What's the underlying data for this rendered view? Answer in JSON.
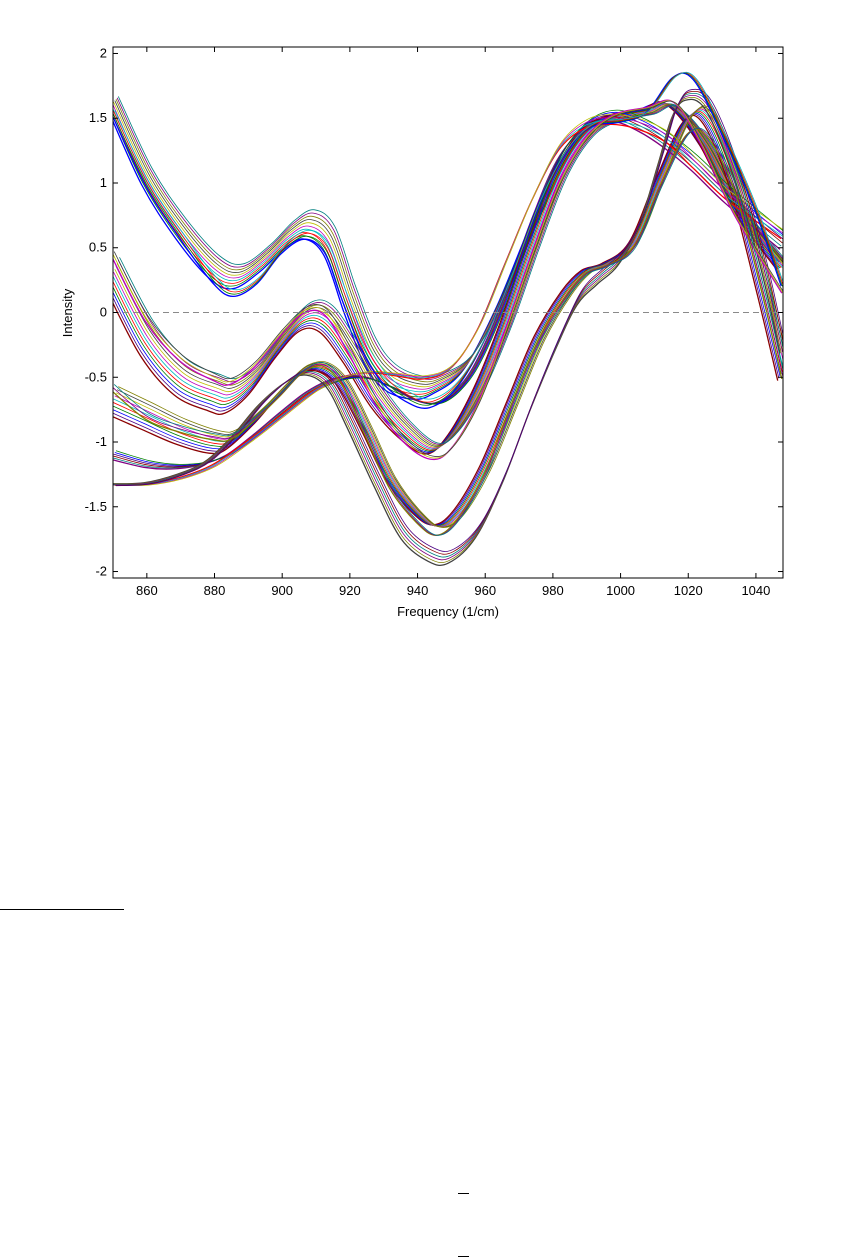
{
  "chart_data": {
    "type": "line",
    "xlabel": "Frequency (1/cm)",
    "ylabel": "Intensity",
    "xlim": [
      850,
      1048
    ],
    "ylim": [
      -2.05,
      2.05
    ],
    "xticks": [
      "860",
      "880",
      "900",
      "920",
      "940",
      "960",
      "980",
      "1000",
      "1020",
      "1040"
    ],
    "xtick_values": [
      860,
      880,
      900,
      920,
      940,
      960,
      980,
      1000,
      1020,
      1040
    ],
    "yticks": [
      "2",
      "1.5",
      "1",
      "0.5",
      "0",
      "-0.5",
      "-1",
      "-1.5",
      "-2"
    ],
    "ytick_values": [
      2,
      1.5,
      1,
      0.5,
      0,
      -0.5,
      -1,
      -1.5,
      -2
    ],
    "grid": false,
    "legend": "none",
    "reference_line": {
      "y": 0,
      "style": "dashed",
      "color": "#888888"
    },
    "palette": [
      "#0000ff",
      "#008000",
      "#ff0000",
      "#00bfbf",
      "#bf00bf",
      "#bfbf00",
      "#404040",
      "#808000",
      "#800080",
      "#008080",
      "#8b0000",
      "#4b0082"
    ],
    "groups": [
      {
        "count": 10,
        "color_hint": "mixed",
        "points": [
          [
            850,
            1.62
          ],
          [
            860,
            1.05
          ],
          [
            870,
            0.65
          ],
          [
            880,
            0.35
          ],
          [
            887,
            0.28
          ],
          [
            895,
            0.42
          ],
          [
            902,
            0.6
          ],
          [
            908,
            0.68
          ],
          [
            914,
            0.55
          ],
          [
            920,
            0.1
          ],
          [
            926,
            -0.3
          ],
          [
            932,
            -0.5
          ],
          [
            940,
            -0.58
          ],
          [
            946,
            -0.55
          ],
          [
            955,
            -0.38
          ],
          [
            965,
            0.1
          ],
          [
            975,
            0.72
          ],
          [
            985,
            1.25
          ],
          [
            995,
            1.5
          ],
          [
            1005,
            1.55
          ],
          [
            1015,
            1.6
          ],
          [
            1025,
            1.28
          ],
          [
            1035,
            0.8
          ],
          [
            1048,
            0.38
          ]
        ]
      },
      {
        "count": 12,
        "color_hint": "mixed",
        "points": [
          [
            850,
            0.3
          ],
          [
            860,
            -0.2
          ],
          [
            870,
            -0.5
          ],
          [
            880,
            -0.62
          ],
          [
            885,
            -0.64
          ],
          [
            892,
            -0.5
          ],
          [
            900,
            -0.22
          ],
          [
            907,
            -0.03
          ],
          [
            913,
            -0.05
          ],
          [
            920,
            -0.3
          ],
          [
            928,
            -0.65
          ],
          [
            936,
            -0.9
          ],
          [
            944,
            -1.05
          ],
          [
            950,
            -0.95
          ],
          [
            958,
            -0.6
          ],
          [
            966,
            -0.1
          ],
          [
            974,
            0.5
          ],
          [
            982,
            1.05
          ],
          [
            990,
            1.38
          ],
          [
            998,
            1.5
          ],
          [
            1008,
            1.55
          ],
          [
            1015,
            1.6
          ],
          [
            1025,
            1.3
          ],
          [
            1035,
            0.8
          ],
          [
            1048,
            0.35
          ]
        ]
      },
      {
        "count": 10,
        "color_hint": "mixed",
        "points": [
          [
            850,
            -0.68
          ],
          [
            860,
            -0.8
          ],
          [
            870,
            -0.92
          ],
          [
            880,
            -1.0
          ],
          [
            885,
            -0.98
          ],
          [
            893,
            -0.8
          ],
          [
            900,
            -0.6
          ],
          [
            906,
            -0.45
          ],
          [
            912,
            -0.42
          ],
          [
            918,
            -0.55
          ],
          [
            925,
            -0.9
          ],
          [
            932,
            -1.28
          ],
          [
            940,
            -1.55
          ],
          [
            946,
            -1.65
          ],
          [
            952,
            -1.55
          ],
          [
            960,
            -1.2
          ],
          [
            968,
            -0.7
          ],
          [
            976,
            -0.2
          ],
          [
            984,
            0.15
          ],
          [
            990,
            0.32
          ],
          [
            996,
            0.38
          ],
          [
            1004,
            0.55
          ],
          [
            1012,
            1.05
          ],
          [
            1020,
            1.5
          ],
          [
            1026,
            1.5
          ],
          [
            1034,
            1.0
          ],
          [
            1042,
            0.2
          ],
          [
            1048,
            -0.45
          ]
        ]
      },
      {
        "count": 6,
        "color_hint": "mixed",
        "points": [
          [
            850,
            -1.1
          ],
          [
            860,
            -1.17
          ],
          [
            868,
            -1.19
          ],
          [
            876,
            -1.17
          ],
          [
            884,
            -1.1
          ],
          [
            892,
            -0.95
          ],
          [
            900,
            -0.78
          ],
          [
            908,
            -0.62
          ],
          [
            916,
            -0.52
          ],
          [
            924,
            -0.5
          ],
          [
            932,
            -0.57
          ],
          [
            940,
            -0.68
          ],
          [
            946,
            -0.7
          ],
          [
            952,
            -0.6
          ],
          [
            958,
            -0.38
          ],
          [
            966,
            0.1
          ],
          [
            974,
            0.7
          ],
          [
            982,
            1.2
          ],
          [
            990,
            1.45
          ],
          [
            998,
            1.52
          ],
          [
            1006,
            1.45
          ],
          [
            1014,
            1.32
          ],
          [
            1022,
            1.15
          ],
          [
            1032,
            0.9
          ],
          [
            1048,
            0.55
          ]
        ]
      },
      {
        "count": 4,
        "color_hint": "mixed",
        "points": [
          [
            850,
            -1.33
          ],
          [
            860,
            -1.33
          ],
          [
            870,
            -1.28
          ],
          [
            880,
            -1.18
          ],
          [
            890,
            -1.0
          ],
          [
            900,
            -0.8
          ],
          [
            910,
            -0.6
          ],
          [
            918,
            -0.5
          ],
          [
            926,
            -0.46
          ],
          [
            934,
            -0.48
          ],
          [
            942,
            -0.5
          ],
          [
            950,
            -0.42
          ],
          [
            958,
            -0.12
          ],
          [
            966,
            0.38
          ],
          [
            974,
            0.88
          ],
          [
            982,
            1.28
          ],
          [
            990,
            1.46
          ],
          [
            998,
            1.49
          ],
          [
            1006,
            1.45
          ],
          [
            1014,
            1.35
          ],
          [
            1022,
            1.15
          ],
          [
            1032,
            0.9
          ],
          [
            1048,
            0.6
          ]
        ]
      },
      {
        "count": 6,
        "color_hint": "mixed",
        "points": [
          [
            850,
            -1.33
          ],
          [
            860,
            -1.32
          ],
          [
            870,
            -1.25
          ],
          [
            878,
            -1.15
          ],
          [
            886,
            -0.95
          ],
          [
            894,
            -0.7
          ],
          [
            902,
            -0.52
          ],
          [
            908,
            -0.46
          ],
          [
            914,
            -0.55
          ],
          [
            920,
            -0.85
          ],
          [
            928,
            -1.3
          ],
          [
            936,
            -1.7
          ],
          [
            944,
            -1.87
          ],
          [
            950,
            -1.88
          ],
          [
            958,
            -1.68
          ],
          [
            966,
            -1.25
          ],
          [
            974,
            -0.7
          ],
          [
            982,
            -0.2
          ],
          [
            988,
            0.12
          ],
          [
            994,
            0.28
          ],
          [
            1000,
            0.42
          ],
          [
            1006,
            0.7
          ],
          [
            1012,
            1.2
          ],
          [
            1016,
            1.55
          ],
          [
            1020,
            1.68
          ],
          [
            1026,
            1.6
          ],
          [
            1034,
            1.1
          ],
          [
            1042,
            0.4
          ],
          [
            1048,
            -0.3
          ]
        ]
      },
      {
        "count": 4,
        "color_hint": "mixed",
        "points": [
          [
            850,
            1.55
          ],
          [
            860,
            1.0
          ],
          [
            870,
            0.6
          ],
          [
            880,
            0.25
          ],
          [
            886,
            0.15
          ],
          [
            893,
            0.25
          ],
          [
            900,
            0.48
          ],
          [
            907,
            0.6
          ],
          [
            913,
            0.5
          ],
          [
            918,
            0.15
          ],
          [
            924,
            -0.25
          ],
          [
            930,
            -0.5
          ],
          [
            937,
            -0.65
          ],
          [
            944,
            -0.7
          ],
          [
            952,
            -0.55
          ],
          [
            960,
            -0.2
          ],
          [
            968,
            0.3
          ],
          [
            976,
            0.85
          ],
          [
            984,
            1.25
          ],
          [
            992,
            1.45
          ],
          [
            1000,
            1.48
          ],
          [
            1008,
            1.55
          ],
          [
            1016,
            1.82
          ],
          [
            1022,
            1.8
          ],
          [
            1030,
            1.4
          ],
          [
            1040,
            0.8
          ],
          [
            1048,
            0.2
          ]
        ]
      },
      {
        "count": 3,
        "color_hint": "mixed",
        "points": [
          [
            850,
            0.45
          ],
          [
            860,
            -0.05
          ],
          [
            870,
            -0.35
          ],
          [
            880,
            -0.5
          ],
          [
            885,
            -0.53
          ],
          [
            892,
            -0.4
          ],
          [
            900,
            -0.15
          ],
          [
            907,
            0.02
          ],
          [
            913,
            0.0
          ],
          [
            920,
            -0.3
          ],
          [
            928,
            -0.7
          ],
          [
            936,
            -0.98
          ],
          [
            944,
            -1.12
          ],
          [
            950,
            -1.05
          ],
          [
            958,
            -0.7
          ],
          [
            966,
            -0.15
          ],
          [
            974,
            0.45
          ],
          [
            982,
            1.0
          ],
          [
            990,
            1.35
          ],
          [
            998,
            1.52
          ],
          [
            1008,
            1.58
          ],
          [
            1016,
            1.62
          ],
          [
            1024,
            1.3
          ],
          [
            1034,
            0.75
          ],
          [
            1048,
            0.15
          ]
        ]
      },
      {
        "count": 3,
        "color_hint": "mixed",
        "points": [
          [
            850,
            -0.58
          ],
          [
            860,
            -0.8
          ],
          [
            870,
            -0.9
          ],
          [
            880,
            -0.96
          ],
          [
            885,
            -0.96
          ],
          [
            892,
            -0.82
          ],
          [
            900,
            -0.62
          ],
          [
            906,
            -0.46
          ],
          [
            912,
            -0.4
          ],
          [
            918,
            -0.55
          ],
          [
            925,
            -0.95
          ],
          [
            932,
            -1.35
          ],
          [
            940,
            -1.62
          ],
          [
            946,
            -1.72
          ],
          [
            952,
            -1.6
          ],
          [
            960,
            -1.25
          ],
          [
            968,
            -0.72
          ],
          [
            976,
            -0.22
          ],
          [
            984,
            0.12
          ],
          [
            990,
            0.3
          ],
          [
            996,
            0.36
          ],
          [
            1004,
            0.5
          ],
          [
            1012,
            0.98
          ],
          [
            1020,
            1.38
          ],
          [
            1026,
            1.36
          ],
          [
            1034,
            0.95
          ],
          [
            1042,
            0.18
          ],
          [
            1048,
            -0.5
          ]
        ]
      }
    ]
  },
  "page": {
    "overline_glyph_1": "‒",
    "overline_glyph_2": "‒"
  }
}
